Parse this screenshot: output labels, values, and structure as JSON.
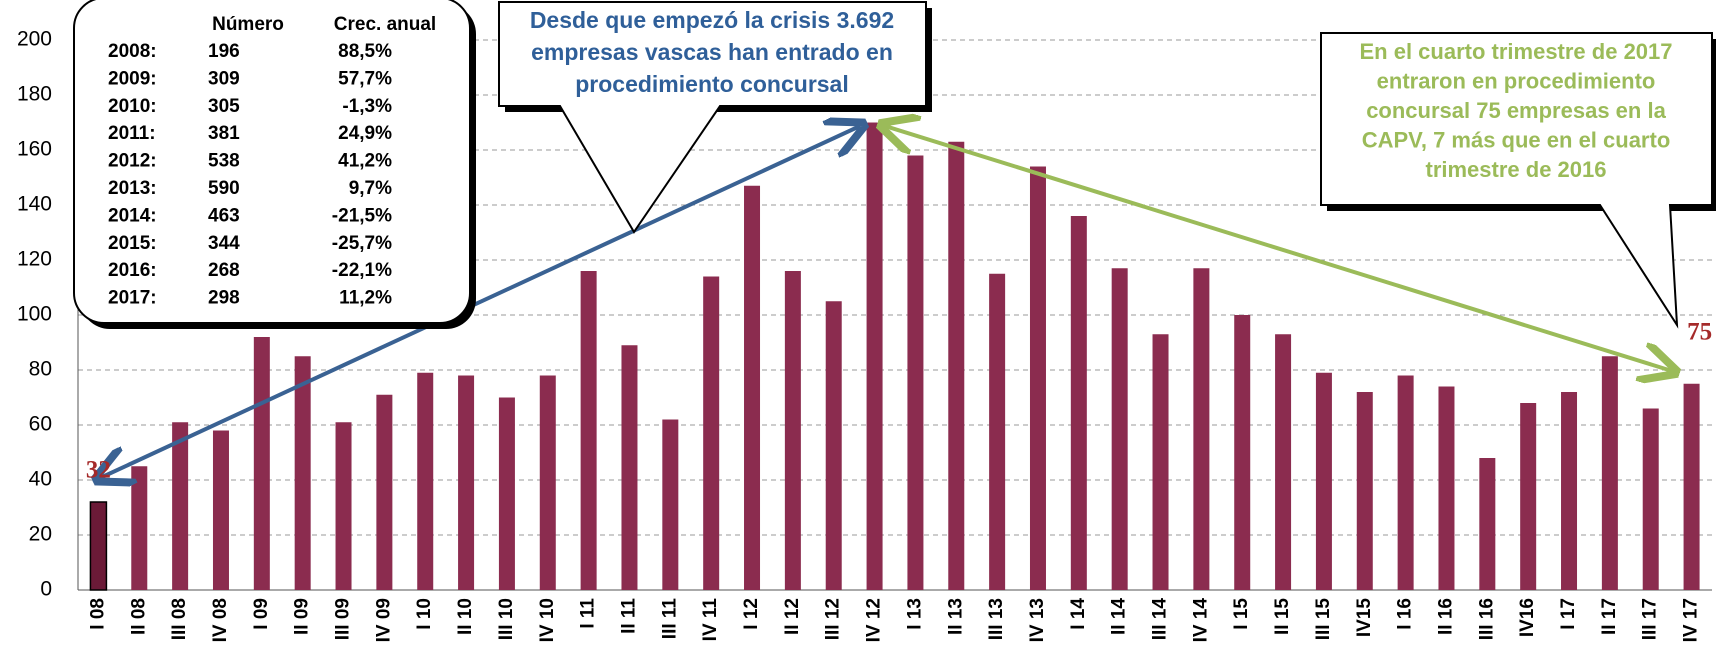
{
  "chart_data": {
    "type": "bar",
    "categories": [
      "I 08",
      "II 08",
      "III 08",
      "IV 08",
      "I 09",
      "II 09",
      "III 09",
      "IV 09",
      "I 10",
      "II 10",
      "III 10",
      "IV 10",
      "I 11",
      "II 11",
      "III 11",
      "IV 11",
      "I 12",
      "II 12",
      "III 12",
      "IV 12",
      "I 13",
      "II 13",
      "III 13",
      "IV 13",
      "I 14",
      "II 14",
      "III 14",
      "IV 14",
      "I 15",
      "II 15",
      "III 15",
      "IV15",
      "I 16",
      "II 16",
      "III 16",
      "IV16",
      "I 17",
      "II 17",
      "III 17",
      "IV 17"
    ],
    "values": [
      32,
      45,
      61,
      58,
      92,
      85,
      61,
      71,
      79,
      78,
      70,
      78,
      116,
      89,
      62,
      114,
      147,
      116,
      105,
      170,
      158,
      163,
      115,
      154,
      136,
      117,
      93,
      117,
      100,
      93,
      79,
      72,
      78,
      74,
      48,
      68,
      72,
      85,
      66,
      75
    ],
    "color": "#8b2c4f",
    "ylim": [
      0,
      200
    ],
    "yticks": [
      0,
      20,
      40,
      60,
      80,
      100,
      120,
      140,
      160,
      180,
      200
    ],
    "grid": true,
    "annotations": [
      "Desde que empezó la crisis 3.692 empresas vascas han entrado en procedimiento concursal",
      "En el cuarto trimestre de 2017 entraron en procedimiento concursal 75 empresas en la CAPV, 7 más que en el cuarto trimestre de 2016"
    ],
    "table": {
      "headers": [
        "Número",
        "Crec. anual"
      ],
      "rows": [
        [
          "2008:",
          "196",
          "88,5%"
        ],
        [
          "2009:",
          "309",
          "57,7%"
        ],
        [
          "2010:",
          "305",
          "-1,3%"
        ],
        [
          "2011:",
          "381",
          "24,9%"
        ],
        [
          "2012:",
          "538",
          "41,2%"
        ],
        [
          "2013:",
          "590",
          "9,7%"
        ],
        [
          "2014:",
          "463",
          "-21,5%"
        ],
        [
          "2015:",
          "344",
          "-25,7%"
        ],
        [
          "2016:",
          "268",
          "-22,1%"
        ],
        [
          "2017:",
          "298",
          "11,2%"
        ]
      ]
    }
  }
}
